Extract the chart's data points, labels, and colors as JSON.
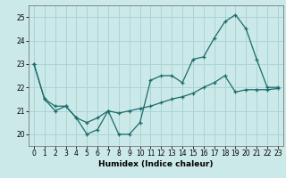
{
  "xlabel": "Humidex (Indice chaleur)",
  "xlim": [
    -0.5,
    23.5
  ],
  "ylim": [
    19.5,
    25.5
  ],
  "yticks": [
    20,
    21,
    22,
    23,
    24,
    25
  ],
  "xticks": [
    0,
    1,
    2,
    3,
    4,
    5,
    6,
    7,
    8,
    9,
    10,
    11,
    12,
    13,
    14,
    15,
    16,
    17,
    18,
    19,
    20,
    21,
    22,
    23
  ],
  "bg_color": "#cce9e9",
  "grid_color": "#aad4d4",
  "line_color": "#1a6b6b",
  "line1_x": [
    0,
    1,
    2,
    3,
    4,
    5,
    6,
    7,
    8,
    9,
    10,
    11,
    12,
    13,
    14,
    15,
    16,
    17,
    18,
    19,
    20,
    21,
    22,
    23
  ],
  "line1_y": [
    23.0,
    21.5,
    21.0,
    21.2,
    20.7,
    20.0,
    20.2,
    21.0,
    20.0,
    20.0,
    20.5,
    22.3,
    22.5,
    22.5,
    22.2,
    23.2,
    23.3,
    24.1,
    24.8,
    25.1,
    24.5,
    23.2,
    22.0,
    22.0
  ],
  "line2_x": [
    0,
    1,
    2,
    3,
    4,
    5,
    6,
    7,
    8,
    9,
    10,
    11,
    12,
    13,
    14,
    15,
    16,
    17,
    18,
    19,
    20,
    21,
    22,
    23
  ],
  "line2_y": [
    23.0,
    21.5,
    21.2,
    21.2,
    20.7,
    20.5,
    20.7,
    21.0,
    20.9,
    21.0,
    21.1,
    21.2,
    21.35,
    21.5,
    21.6,
    21.75,
    22.0,
    22.2,
    22.5,
    21.8,
    21.9,
    21.9,
    21.9,
    21.95
  ]
}
